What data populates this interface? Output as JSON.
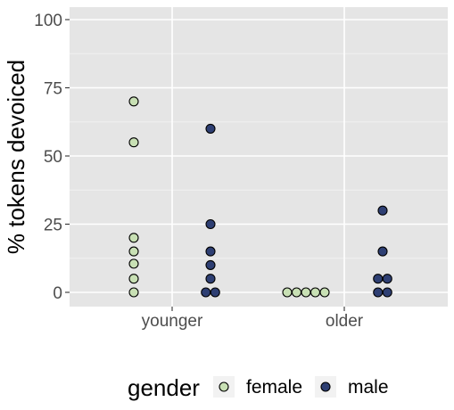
{
  "chart_data": {
    "type": "scatter",
    "title": "",
    "xlabel": "",
    "ylabel": "% tokens devoiced",
    "categories": [
      "younger",
      "older"
    ],
    "yticks": [
      0,
      25,
      50,
      75,
      100
    ],
    "ylim": [
      -5,
      105
    ],
    "grid": true,
    "legend": {
      "title": "gender",
      "position": "bottom"
    },
    "series": [
      {
        "name": "female",
        "color": "#c8e0b4",
        "points": [
          {
            "category": "younger",
            "y": 70
          },
          {
            "category": "younger",
            "y": 55
          },
          {
            "category": "younger",
            "y": 20
          },
          {
            "category": "younger",
            "y": 15
          },
          {
            "category": "younger",
            "y": 10.5
          },
          {
            "category": "younger",
            "y": 5
          },
          {
            "category": "younger",
            "y": 0
          },
          {
            "category": "older",
            "y": 0
          },
          {
            "category": "older",
            "y": 0
          },
          {
            "category": "older",
            "y": 0
          },
          {
            "category": "older",
            "y": 0
          },
          {
            "category": "older",
            "y": 0
          }
        ]
      },
      {
        "name": "male",
        "color": "#2e3f73",
        "points": [
          {
            "category": "younger",
            "y": 60
          },
          {
            "category": "younger",
            "y": 25
          },
          {
            "category": "younger",
            "y": 15
          },
          {
            "category": "younger",
            "y": 10
          },
          {
            "category": "younger",
            "y": 5
          },
          {
            "category": "younger",
            "y": 0
          },
          {
            "category": "younger",
            "y": 0
          },
          {
            "category": "older",
            "y": 30
          },
          {
            "category": "older",
            "y": 15
          },
          {
            "category": "older",
            "y": 5
          },
          {
            "category": "older",
            "y": 5
          },
          {
            "category": "older",
            "y": 0
          },
          {
            "category": "older",
            "y": 0
          }
        ]
      }
    ]
  }
}
